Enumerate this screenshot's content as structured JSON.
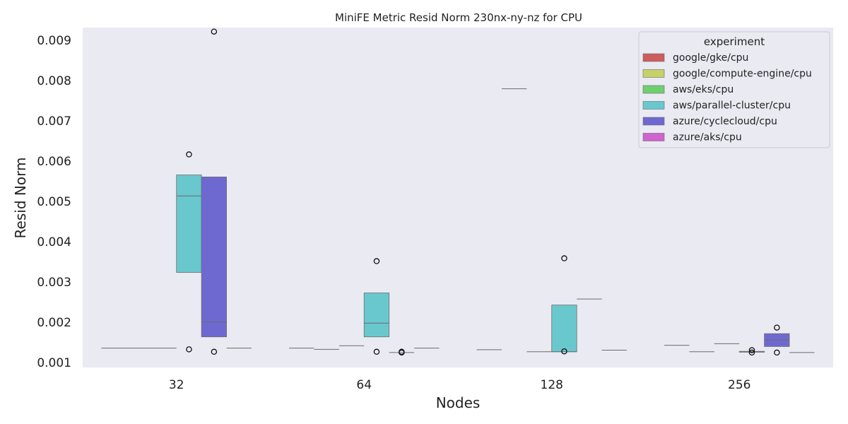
{
  "chart_data": {
    "type": "box",
    "title": "MiniFE Metric Resid Norm 230nx-ny-nz for CPU",
    "xlabel": "Nodes",
    "ylabel": "Resid Norm",
    "categories": [
      "32",
      "64",
      "128",
      "256"
    ],
    "ylim": [
      0.00088,
      0.00932
    ],
    "yticks": [
      0.001,
      0.002,
      0.003,
      0.004,
      0.005,
      0.006,
      0.007,
      0.008,
      0.009
    ],
    "ytick_labels": [
      "0.001",
      "0.002",
      "0.003",
      "0.004",
      "0.005",
      "0.006",
      "0.007",
      "0.008",
      "0.009"
    ],
    "grid": false,
    "legend": {
      "title": "experiment",
      "placement": "top-right"
    },
    "background": "#eaeaf2",
    "series": [
      {
        "name": "google/gke/cpu",
        "color": "#cd5c5c",
        "boxes": [
          {
            "q1": 0.00136,
            "median": 0.00136,
            "q3": 0.00136,
            "outliers": []
          },
          {
            "q1": 0.00136,
            "median": 0.00136,
            "q3": 0.00136,
            "outliers": []
          },
          {
            "q1": 0.00132,
            "median": 0.00132,
            "q3": 0.00132,
            "outliers": []
          },
          {
            "q1": 0.00143,
            "median": 0.00143,
            "q3": 0.00143,
            "outliers": []
          }
        ]
      },
      {
        "name": "google/compute-engine/cpu",
        "color": "#c8d169",
        "boxes": [
          {
            "q1": 0.00136,
            "median": 0.00136,
            "q3": 0.00136,
            "outliers": []
          },
          {
            "q1": 0.00133,
            "median": 0.00133,
            "q3": 0.00133,
            "outliers": []
          },
          {
            "q1": 0.0078,
            "median": 0.0078,
            "q3": 0.0078,
            "outliers": []
          },
          {
            "q1": 0.00127,
            "median": 0.00127,
            "q3": 0.00127,
            "outliers": []
          }
        ]
      },
      {
        "name": "aws/eks/cpu",
        "color": "#6ecf6e",
        "boxes": [
          {
            "q1": 0.00136,
            "median": 0.00136,
            "q3": 0.00136,
            "outliers": []
          },
          {
            "q1": 0.00142,
            "median": 0.00142,
            "q3": 0.00142,
            "outliers": []
          },
          {
            "q1": 0.00127,
            "median": 0.00127,
            "q3": 0.00127,
            "outliers": []
          },
          {
            "q1": 0.00147,
            "median": 0.00147,
            "q3": 0.00147,
            "outliers": []
          }
        ]
      },
      {
        "name": "aws/parallel-cluster/cpu",
        "color": "#69c8ce",
        "boxes": [
          {
            "q1": 0.00324,
            "median": 0.00514,
            "q3": 0.00566,
            "outliers": [
              0.00617,
              0.00133
            ]
          },
          {
            "q1": 0.00164,
            "median": 0.00198,
            "q3": 0.00273,
            "outliers": [
              0.00352,
              0.00127
            ]
          },
          {
            "q1": 0.00127,
            "median": 0.00127,
            "q3": 0.00243,
            "outliers": [
              0.00359,
              0.00128
            ]
          },
          {
            "q1": 0.00126,
            "median": 0.00127,
            "q3": 0.00128,
            "outliers": [
              0.00131,
              0.00125
            ]
          }
        ]
      },
      {
        "name": "azure/cyclecloud/cpu",
        "color": "#6e69d1",
        "boxes": [
          {
            "q1": 0.00164,
            "median": 0.00201,
            "q3": 0.00561,
            "outliers": [
              0.00922,
              0.00127
            ]
          },
          {
            "q1": 0.00125,
            "median": 0.00125,
            "q3": 0.00126,
            "outliers": [
              0.00127,
              0.00125
            ]
          },
          {
            "q1": 0.00258,
            "median": 0.00258,
            "q3": 0.00258,
            "outliers": []
          },
          {
            "q1": 0.0014,
            "median": 0.00156,
            "q3": 0.00172,
            "outliers": [
              0.00187,
              0.00125
            ]
          }
        ]
      },
      {
        "name": "azure/aks/cpu",
        "color": "#cf63cf",
        "boxes": [
          {
            "q1": 0.00136,
            "median": 0.00136,
            "q3": 0.00136,
            "outliers": []
          },
          {
            "q1": 0.00136,
            "median": 0.00136,
            "q3": 0.00136,
            "outliers": []
          },
          {
            "q1": 0.00131,
            "median": 0.00131,
            "q3": 0.00131,
            "outliers": []
          },
          {
            "q1": 0.00125,
            "median": 0.00125,
            "q3": 0.00125,
            "outliers": []
          }
        ]
      }
    ]
  }
}
